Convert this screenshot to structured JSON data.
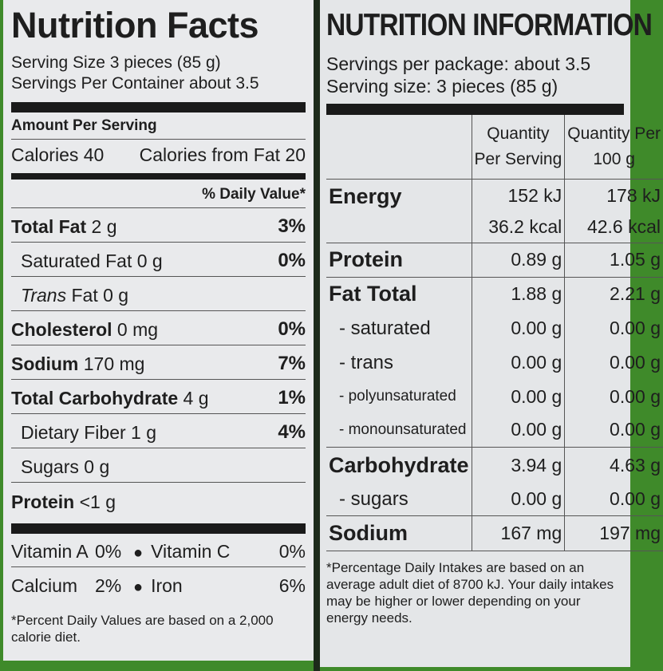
{
  "us_label": {
    "title": "Nutrition Facts",
    "serving_size": "Serving Size 3 pieces (85 g)",
    "servings_per_container": "Servings Per Container about 3.5",
    "amount_per_serving": "Amount Per Serving",
    "calories": "Calories 40",
    "calories_from_fat": "Calories from Fat 20",
    "daily_value_header": "% Daily Value*",
    "rows": [
      {
        "name": "Total Fat",
        "amount": "2 g",
        "dv": "3%"
      },
      {
        "name": "Saturated Fat",
        "amount": "0 g",
        "dv": "0%"
      },
      {
        "name": "Trans",
        "name_suffix": "Fat",
        "amount": "0 g",
        "dv": ""
      },
      {
        "name": "Cholesterol",
        "amount": "0 mg",
        "dv": "0%"
      },
      {
        "name": "Sodium",
        "amount": "170 mg",
        "dv": "7%"
      },
      {
        "name": "Total Carbohydrate",
        "amount": "4 g",
        "dv": "1%"
      },
      {
        "name": "Dietary Fiber",
        "amount": "1 g",
        "dv": "4%"
      },
      {
        "name": "Sugars",
        "amount": "0 g",
        "dv": ""
      },
      {
        "name": "Protein",
        "amount": "<1 g",
        "dv": ""
      }
    ],
    "vitamins": [
      {
        "a": "Vitamin A",
        "a_pct": "0%",
        "b": "Vitamin C",
        "b_pct": "0%"
      },
      {
        "a": "Calcium",
        "a_pct": "2%",
        "b": "Iron",
        "b_pct": "6%"
      }
    ],
    "footnote": "*Percent Daily Values are based on a 2,000 calorie diet."
  },
  "au_label": {
    "title": "NUTRITION INFORMATION",
    "servings_per_package": "Servings per package: about 3.5",
    "serving_size": "Serving size: 3 pieces (85 g)",
    "col1_line1": "Quantity",
    "col1_line2": "Per Serving",
    "col2_line1": "Quantity Per",
    "col2_line2": "100 g",
    "energy": {
      "label": "Energy",
      "kj_serv": "152 kJ",
      "kj_100": "178 kJ",
      "kcal_serv": "36.2 kcal",
      "kcal_100": "42.6 kcal"
    },
    "protein": {
      "label": "Protein",
      "serv": "0.89 g",
      "per100": "1.05 g"
    },
    "fat": {
      "label": "Fat Total",
      "serv": "1.88 g",
      "per100": "2.21 g"
    },
    "fat_sub": [
      {
        "label": "- saturated",
        "serv": "0.00 g",
        "per100": "0.00 g"
      },
      {
        "label": "- trans",
        "serv": "0.00 g",
        "per100": "0.00 g"
      },
      {
        "label": "- polyunsaturated",
        "serv": "0.00 g",
        "per100": "0.00 g"
      },
      {
        "label": "- monounsaturated",
        "serv": "0.00 g",
        "per100": "0.00 g"
      }
    ],
    "carb": {
      "label": "Carbohydrate",
      "serv": "3.94 g",
      "per100": "4.63 g"
    },
    "sugars": {
      "label": "- sugars",
      "serv": "0.00 g",
      "per100": "0.00 g"
    },
    "sodium": {
      "label": "Sodium",
      "serv": "167 mg",
      "per100": "197 mg"
    },
    "footnote": "*Percentage Daily Intakes are based on an average adult diet of 8700 kJ.  Your daily intakes may be higher or lower depending on your energy needs."
  }
}
